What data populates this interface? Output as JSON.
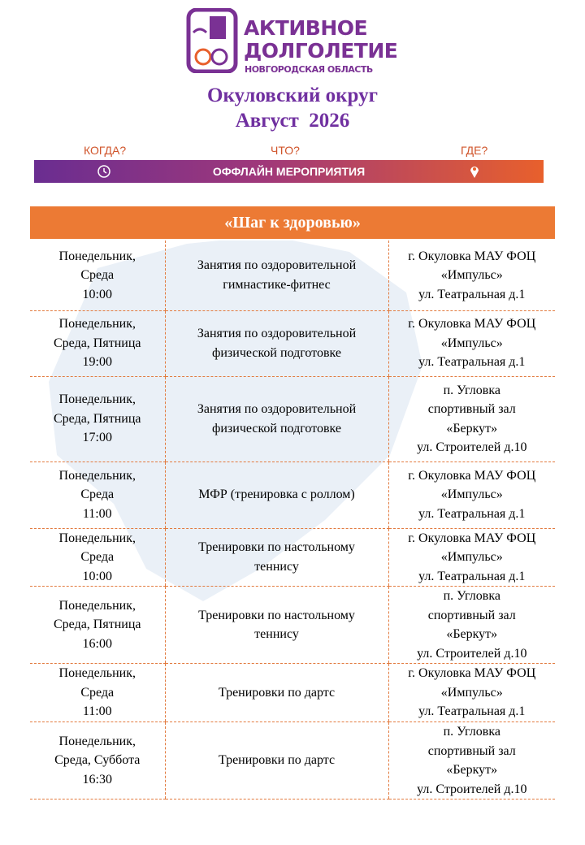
{
  "logo": {
    "line1": "АКТИВНОЕ",
    "line2": "ДОЛГОЛЕТИЕ",
    "line3": "НОВГОРОДСКАЯ ОБЛАСТЬ"
  },
  "header": {
    "title": "Окуловский округ",
    "month": "Август  2026"
  },
  "nav": {
    "when": "КОГДА?",
    "what": "ЧТО?",
    "where": "ГДЕ?",
    "banner": "ОФФЛАЙН МЕРОПРИЯТИЯ"
  },
  "table": {
    "title": "«Шаг к здоровью»",
    "rows": [
      {
        "when": [
          "Понедельник,",
          "Среда",
          "10:00"
        ],
        "what": [
          "Занятия по оздоровительной",
          "гимнастике-фитнес"
        ],
        "where": [
          "г. Окуловка МАУ ФОЦ",
          "«Импульс»",
          "ул. Театральная д.1"
        ]
      },
      {
        "when": [
          "Понедельник,",
          "Среда, Пятница",
          "19:00"
        ],
        "what": [
          "Занятия по оздоровительной",
          "физической подготовке"
        ],
        "where": [
          "г. Окуловка МАУ ФОЦ",
          "«Импульс»",
          "ул. Театральная д.1"
        ]
      },
      {
        "when": [
          "Понедельник,",
          "Среда, Пятница",
          "17:00"
        ],
        "what": [
          "Занятия по оздоровительной",
          "физической подготовке"
        ],
        "where": [
          "п. Угловка",
          "спортивный зал",
          "«Беркут»",
          "ул. Строителей д.10"
        ]
      },
      {
        "when": [
          "Понедельник,",
          "Среда",
          "11:00"
        ],
        "what": [
          "МФР (тренировка с роллом)"
        ],
        "where": [
          "г. Окуловка МАУ ФОЦ",
          "«Импульс»",
          "ул. Театральная д.1"
        ]
      },
      {
        "when": [
          "Понедельник,",
          "Среда",
          "10:00"
        ],
        "what": [
          "Тренировки по настольному",
          "теннису"
        ],
        "where": [
          "г. Окуловка МАУ ФОЦ",
          "«Импульс»",
          "ул. Театральная д.1"
        ]
      },
      {
        "when": [
          "Понедельник,",
          "Среда, Пятница",
          "16:00"
        ],
        "what": [
          "Тренировки по настольному",
          "теннису"
        ],
        "where": [
          "п. Угловка",
          "спортивный зал",
          "«Беркут»",
          "ул. Строителей д.10"
        ]
      },
      {
        "when": [
          "Понедельник,",
          "Среда",
          "11:00"
        ],
        "what": [
          "Тренировки по дартс"
        ],
        "where": [
          "г. Окуловка МАУ ФОЦ",
          "«Импульс»",
          "ул. Театральная д.1"
        ]
      },
      {
        "when": [
          "Понедельник,",
          "Среда, Суббота",
          "16:30"
        ],
        "what": [
          "Тренировки по дартс"
        ],
        "where": [
          "п. Угловка",
          "спортивный зал",
          "«Беркут»",
          "ул. Строителей д.10"
        ]
      }
    ]
  }
}
